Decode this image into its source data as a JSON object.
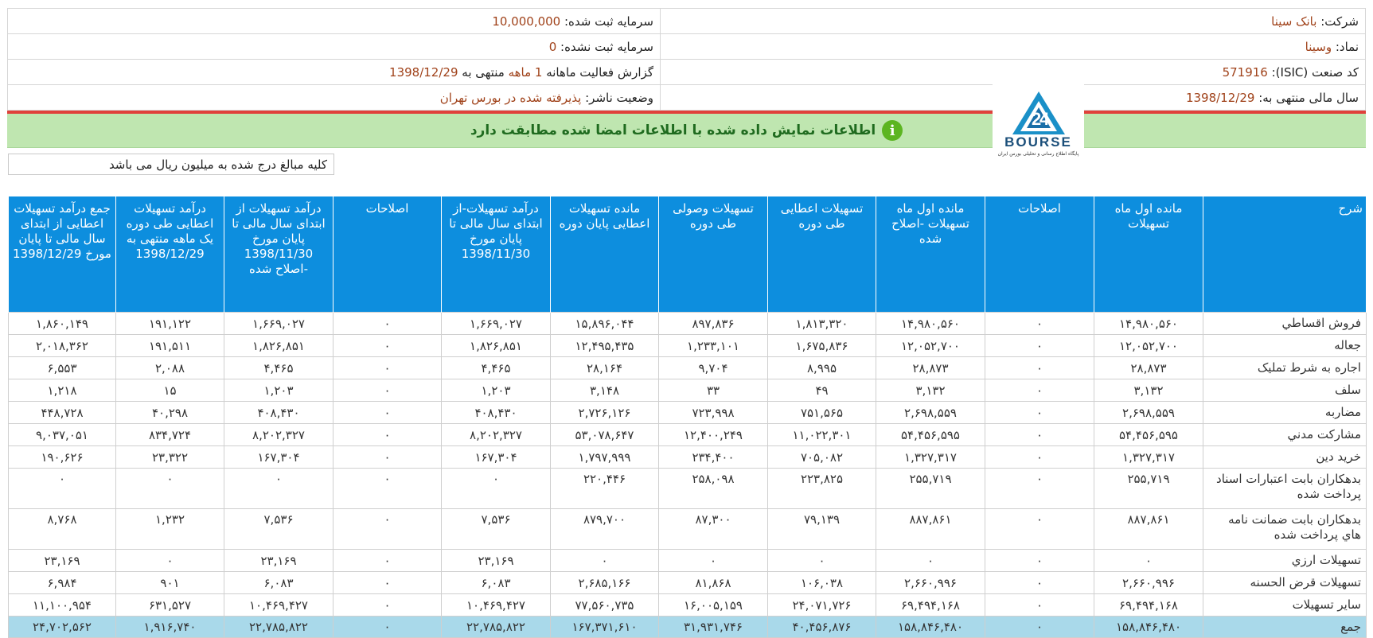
{
  "header": {
    "company_label": "شرکت:",
    "company_value": "بانک سینا",
    "registered_capital_label": "سرمایه ثبت شده:",
    "registered_capital_value": "10,000,000",
    "symbol_label": "نماد:",
    "symbol_value": "وسینا",
    "unregistered_capital_label": "سرمایه ثبت نشده:",
    "unregistered_capital_value": "0",
    "isic_label": "کد صنعت (ISIC):",
    "isic_value": "571916",
    "report_label_pre": "گزارش فعالیت ماهانه",
    "report_months": "1 ماهه",
    "report_label_mid": "منتهی به",
    "report_date": "1398/12/29",
    "fiscal_year_label": "سال مالی منتهی به:",
    "fiscal_year_value": "1398/12/29",
    "publisher_status_label": "وضعیت ناشر:",
    "publisher_status_value": "پذیرفته شده در بورس تهران"
  },
  "notice": {
    "icon": "info-icon",
    "text": "اطلاعات نمایش داده شده با اطلاعات امضا شده مطابقت دارد"
  },
  "logo": {
    "text": "BOURSE",
    "subtext": "پایگاه اطلاع رسانی و تحلیلی بورس ایران"
  },
  "unit_note": "کلیه مبالغ درج شده به میلیون ریال می باشد",
  "columns": [
    "شرح",
    "مانده اول ماه تسهیلات",
    "اصلاحات",
    "مانده اول ماه تسهیلات -اصلاح شده",
    "تسهیلات اعطایی طی دوره",
    "تسهیلات وصولی طی دوره",
    "مانده تسهیلات اعطایی پایان دوره",
    "درآمد تسهیلات-از ابتدای سال مالی تا پایان مورخ 1398/11/30",
    "اصلاحات",
    "درآمد تسهیلات از ابتدای سال مالی تا پایان مورخ 1398/11/30 -اصلاح شده",
    "درآمد تسهیلات اعطایی طی دوره یک ماهه منتهی به 1398/12/29",
    "جمع درآمد تسهیلات اعطایی از ابتدای سال مالی تا پایان مورخ 1398/12/29"
  ],
  "rows": [
    {
      "label": "فروش اقساطي",
      "cells": [
        "۱۴,۹۸۰,۵۶۰",
        "۰",
        "۱۴,۹۸۰,۵۶۰",
        "۱,۸۱۳,۳۲۰",
        "۸۹۷,۸۳۶",
        "۱۵,۸۹۶,۰۴۴",
        "۱,۶۶۹,۰۲۷",
        "۰",
        "۱,۶۶۹,۰۲۷",
        "۱۹۱,۱۲۲",
        "۱,۸۶۰,۱۴۹"
      ]
    },
    {
      "label": "جعاله",
      "cells": [
        "۱۲,۰۵۲,۷۰۰",
        "۰",
        "۱۲,۰۵۲,۷۰۰",
        "۱,۶۷۵,۸۳۶",
        "۱,۲۳۳,۱۰۱",
        "۱۲,۴۹۵,۴۳۵",
        "۱,۸۲۶,۸۵۱",
        "۰",
        "۱,۸۲۶,۸۵۱",
        "۱۹۱,۵۱۱",
        "۲,۰۱۸,۳۶۲"
      ]
    },
    {
      "label": "اجاره به شرط تمليک",
      "cells": [
        "۲۸,۸۷۳",
        "۰",
        "۲۸,۸۷۳",
        "۸,۹۹۵",
        "۹,۷۰۴",
        "۲۸,۱۶۴",
        "۴,۴۶۵",
        "۰",
        "۴,۴۶۵",
        "۲,۰۸۸",
        "۶,۵۵۳"
      ]
    },
    {
      "label": "سلف",
      "cells": [
        "۳,۱۳۲",
        "۰",
        "۳,۱۳۲",
        "۴۹",
        "۳۳",
        "۳,۱۴۸",
        "۱,۲۰۳",
        "۰",
        "۱,۲۰۳",
        "۱۵",
        "۱,۲۱۸"
      ]
    },
    {
      "label": "مضاربه",
      "cells": [
        "۲,۶۹۸,۵۵۹",
        "۰",
        "۲,۶۹۸,۵۵۹",
        "۷۵۱,۵۶۵",
        "۷۲۳,۹۹۸",
        "۲,۷۲۶,۱۲۶",
        "۴۰۸,۴۳۰",
        "۰",
        "۴۰۸,۴۳۰",
        "۴۰,۲۹۸",
        "۴۴۸,۷۲۸"
      ]
    },
    {
      "label": "مشارکت مدني",
      "cells": [
        "۵۴,۴۵۶,۵۹۵",
        "۰",
        "۵۴,۴۵۶,۵۹۵",
        "۱۱,۰۲۲,۳۰۱",
        "۱۲,۴۰۰,۲۴۹",
        "۵۳,۰۷۸,۶۴۷",
        "۸,۲۰۲,۳۲۷",
        "۰",
        "۸,۲۰۲,۳۲۷",
        "۸۳۴,۷۲۴",
        "۹,۰۳۷,۰۵۱"
      ]
    },
    {
      "label": "خريد دين",
      "cells": [
        "۱,۳۲۷,۳۱۷",
        "۰",
        "۱,۳۲۷,۳۱۷",
        "۷۰۵,۰۸۲",
        "۲۳۴,۴۰۰",
        "۱,۷۹۷,۹۹۹",
        "۱۶۷,۳۰۴",
        "۰",
        "۱۶۷,۳۰۴",
        "۲۳,۳۲۲",
        "۱۹۰,۶۲۶"
      ]
    },
    {
      "label": "بدهکاران بابت اعتبارات اسناد پرداخت شده",
      "tall": true,
      "cells": [
        "۲۵۵,۷۱۹",
        "۰",
        "۲۵۵,۷۱۹",
        "۲۲۳,۸۲۵",
        "۲۵۸,۰۹۸",
        "۲۲۰,۴۴۶",
        "۰",
        "۰",
        "۰",
        "۰",
        "۰"
      ]
    },
    {
      "label": "بدهکاران بابت ضمانت نامه هاي پرداخت شده",
      "tall": true,
      "cells": [
        "۸۸۷,۸۶۱",
        "۰",
        "۸۸۷,۸۶۱",
        "۷۹,۱۳۹",
        "۸۷,۳۰۰",
        "۸۷۹,۷۰۰",
        "۷,۵۳۶",
        "۰",
        "۷,۵۳۶",
        "۱,۲۳۲",
        "۸,۷۶۸"
      ]
    },
    {
      "label": "تسهيلات ارزي",
      "cells": [
        "۰",
        "۰",
        "۰",
        "۰",
        "۰",
        "۰",
        "۲۳,۱۶۹",
        "۰",
        "۲۳,۱۶۹",
        "۰",
        "۲۳,۱۶۹"
      ]
    },
    {
      "label": "تسهيلات قرض الحسنه",
      "cells": [
        "۲,۶۶۰,۹۹۶",
        "۰",
        "۲,۶۶۰,۹۹۶",
        "۱۰۶,۰۳۸",
        "۸۱,۸۶۸",
        "۲,۶۸۵,۱۶۶",
        "۶,۰۸۳",
        "۰",
        "۶,۰۸۳",
        "۹۰۱",
        "۶,۹۸۴"
      ]
    },
    {
      "label": "ساير تسهيلات",
      "cells": [
        "۶۹,۴۹۴,۱۶۸",
        "۰",
        "۶۹,۴۹۴,۱۶۸",
        "۲۴,۰۷۱,۷۲۶",
        "۱۶,۰۰۵,۱۵۹",
        "۷۷,۵۶۰,۷۳۵",
        "۱۰,۴۶۹,۴۲۷",
        "۰",
        "۱۰,۴۶۹,۴۲۷",
        "۶۳۱,۵۲۷",
        "۱۱,۱۰۰,۹۵۴"
      ]
    },
    {
      "label": "جمع",
      "total": true,
      "cells": [
        "۱۵۸,۸۴۶,۴۸۰",
        "۰",
        "۱۵۸,۸۴۶,۴۸۰",
        "۴۰,۴۵۶,۸۷۶",
        "۳۱,۹۳۱,۷۴۶",
        "۱۶۷,۳۷۱,۶۱۰",
        "۲۲,۷۸۵,۸۲۲",
        "۰",
        "۲۲,۷۸۵,۸۲۲",
        "۱,۹۱۶,۷۴۰",
        "۲۴,۷۰۲,۵۶۲"
      ]
    }
  ]
}
